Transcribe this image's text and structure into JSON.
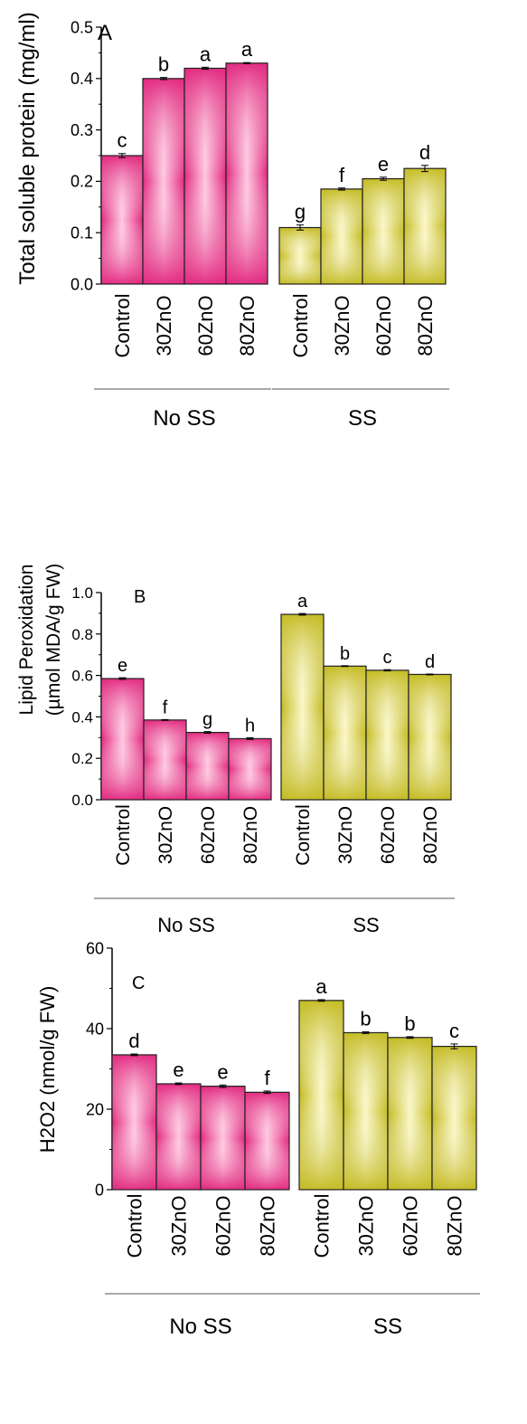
{
  "chart_data": [
    {
      "type": "bar",
      "panel_label": "A",
      "ylabel": "Total soluble protein (mg/ml)",
      "ylim": [
        0,
        0.5
      ],
      "yticks": [
        "0.0",
        "0.1",
        "0.2",
        "0.3",
        "0.4",
        "0.5"
      ],
      "categories": [
        "Control",
        "30ZnO",
        "60ZnO",
        "80ZnO",
        "Control",
        "30ZnO",
        "60ZnO",
        "80ZnO"
      ],
      "groups": [
        {
          "name": "No SS",
          "values": [
            0.25,
            0.4,
            0.42,
            0.43
          ],
          "errors": [
            0.004,
            0.002,
            0.002,
            0.001
          ],
          "letters": [
            "c",
            "b",
            "a",
            "a"
          ],
          "color": "#e8328a"
        },
        {
          "name": "SS",
          "values": [
            0.11,
            0.185,
            0.205,
            0.225
          ],
          "errors": [
            0.005,
            0.002,
            0.003,
            0.006
          ],
          "letters": [
            "g",
            "f",
            "e",
            "d"
          ],
          "color": "#c9c12e"
        }
      ]
    },
    {
      "type": "bar",
      "panel_label": "B",
      "ylabel": [
        "Lipid Peroxidation",
        "(µmol MDA/g FW)"
      ],
      "ylim": [
        0,
        1.0
      ],
      "yticks": [
        "0.0",
        "0.2",
        "0.4",
        "0.6",
        "0.8",
        "1.0"
      ],
      "categories": [
        "Control",
        "30ZnO",
        "60ZnO",
        "80ZnO",
        "Control",
        "30ZnO",
        "60ZnO",
        "80ZnO"
      ],
      "groups": [
        {
          "name": "No SS",
          "values": [
            0.585,
            0.385,
            0.325,
            0.295
          ],
          "errors": [
            0.004,
            0.002,
            0.004,
            0.004
          ],
          "letters": [
            "e",
            "f",
            "g",
            "h"
          ],
          "color": "#e8328a"
        },
        {
          "name": "SS",
          "values": [
            0.895,
            0.645,
            0.625,
            0.605
          ],
          "errors": [
            0.004,
            0.002,
            0.003,
            0.002
          ],
          "letters": [
            "a",
            "b",
            "c",
            "d"
          ],
          "color": "#c9c12e"
        }
      ]
    },
    {
      "type": "bar",
      "panel_label": "C",
      "ylabel": "H2O2 (nmol/g FW)",
      "ylim": [
        0,
        60
      ],
      "yticks": [
        "0",
        "20",
        "40",
        "60"
      ],
      "categories": [
        "Control",
        "30ZnO",
        "60ZnO",
        "80ZnO",
        "Control",
        "30ZnO",
        "60ZnO",
        "80ZnO"
      ],
      "groups": [
        {
          "name": "No SS",
          "values": [
            33.5,
            26.3,
            25.7,
            24.2
          ],
          "errors": [
            0.2,
            0.2,
            0.3,
            0.3
          ],
          "letters": [
            "d",
            "e",
            "e",
            "f"
          ],
          "color": "#e8328a"
        },
        {
          "name": "SS",
          "values": [
            47.0,
            39.0,
            37.8,
            35.6
          ],
          "errors": [
            0.2,
            0.2,
            0.2,
            0.6
          ],
          "letters": [
            "a",
            "b",
            "b",
            "c"
          ],
          "color": "#c9c12e"
        }
      ]
    }
  ]
}
